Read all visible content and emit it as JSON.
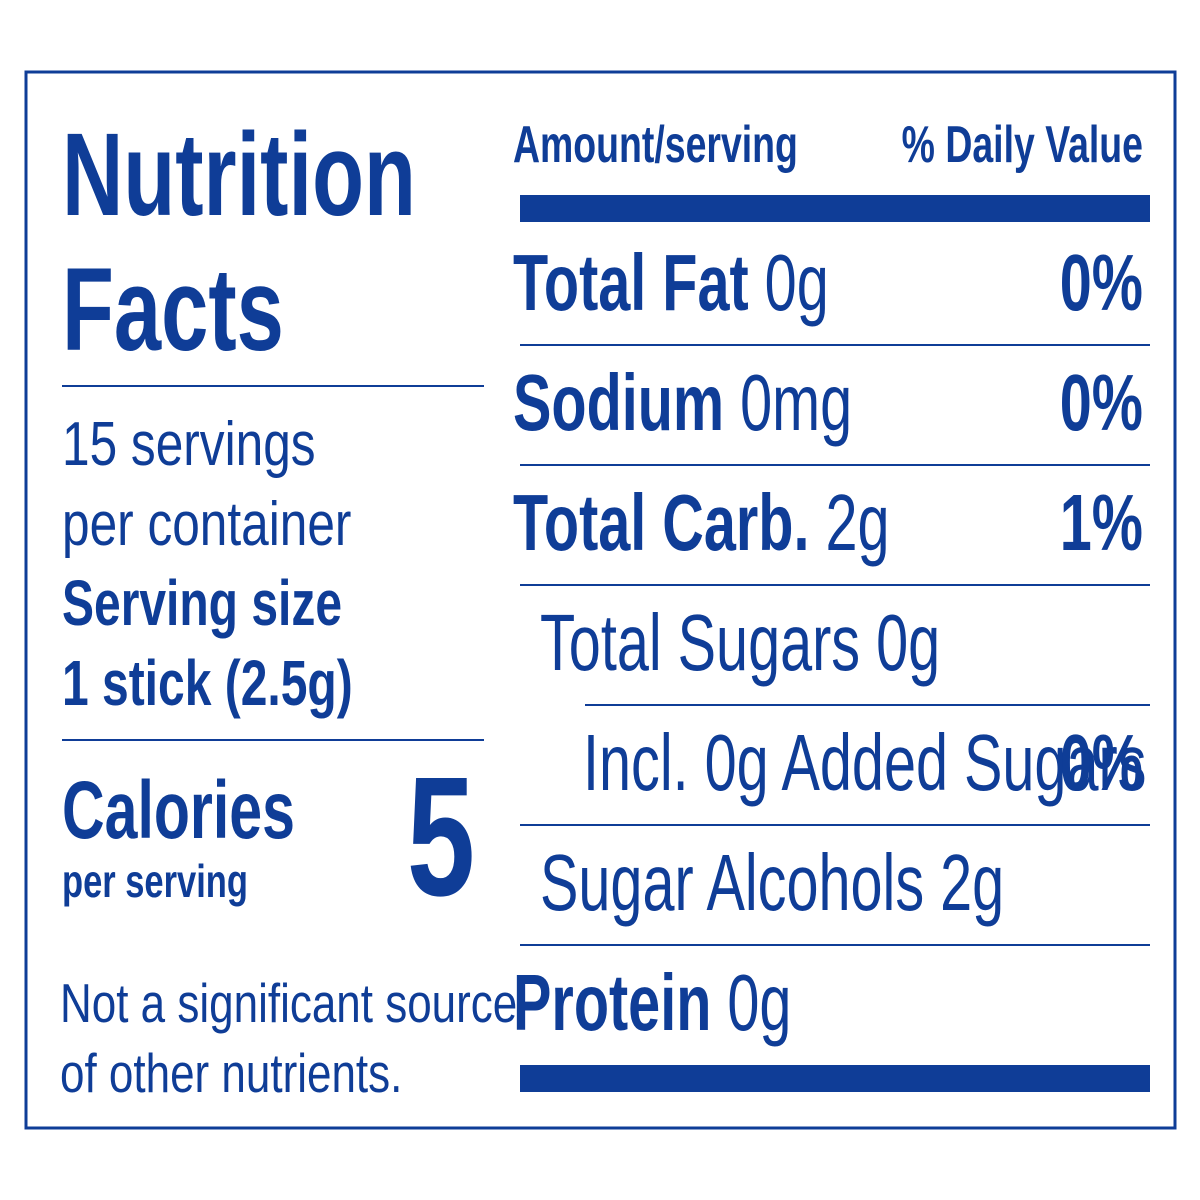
{
  "title": [
    "Nutrition",
    "Facts"
  ],
  "servings": [
    "15 servings",
    "per container"
  ],
  "serving_size": {
    "label": "Serving size",
    "value": "1 stick (2.5g)"
  },
  "calories": {
    "label": "Calories",
    "sub": "per serving",
    "value": "5"
  },
  "footnote": [
    "Not a significant source",
    "of other nutrients."
  ],
  "header": {
    "amount": "Amount/serving",
    "daily_value": "% Daily Value"
  },
  "nutrients": [
    {
      "name": "Total Fat",
      "amount": "0g",
      "dv": "0%"
    },
    {
      "name": "Sodium",
      "amount": "0mg",
      "dv": "0%"
    },
    {
      "name": "Total Carb.",
      "amount": "2g",
      "dv": "1%"
    },
    {
      "label": "Total Sugars 0g"
    },
    {
      "label": "Incl. 0g Added Sugars",
      "dv": "0%"
    },
    {
      "label": "Sugar Alcohols 2g"
    },
    {
      "name": "Protein",
      "amount": "0g"
    }
  ]
}
